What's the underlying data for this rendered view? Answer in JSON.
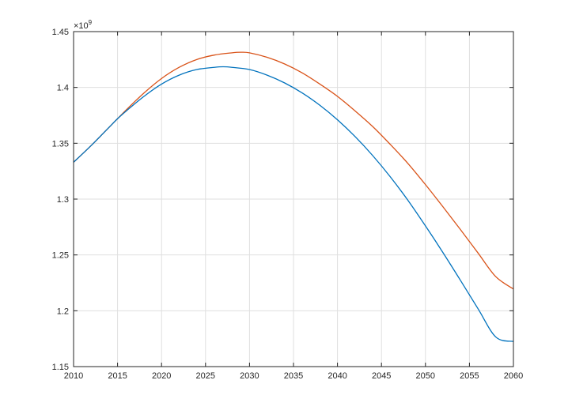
{
  "chart_data": {
    "type": "line",
    "title": "",
    "xlabel": "",
    "ylabel": "",
    "xlim": [
      2010,
      2060
    ],
    "ylim": [
      1.15,
      1.45
    ],
    "y_multiplier_label": "×10",
    "y_multiplier_exponent": "9",
    "grid": true,
    "legend": "none",
    "x_ticks": [
      "2010",
      "2015",
      "2020",
      "2025",
      "2030",
      "2035",
      "2040",
      "2045",
      "2050",
      "2055",
      "2060"
    ],
    "y_ticks": [
      "1.15",
      "1.2",
      "1.25",
      "1.3",
      "1.35",
      "1.4",
      "1.45"
    ],
    "series": [
      {
        "color": "#D95319",
        "x": [
          2010,
          2012,
          2014,
          2015,
          2016,
          2018,
          2020,
          2022,
          2024,
          2026,
          2028,
          2029,
          2030,
          2032,
          2034,
          2036,
          2038,
          2040,
          2042,
          2044,
          2046,
          2048,
          2050,
          2052,
          2054,
          2056,
          2058,
          2060
        ],
        "values": [
          1.333,
          1.348,
          1.364,
          1.372,
          1.38,
          1.395,
          1.408,
          1.418,
          1.425,
          1.429,
          1.431,
          1.4315,
          1.431,
          1.427,
          1.421,
          1.413,
          1.403,
          1.392,
          1.379,
          1.365,
          1.349,
          1.332,
          1.313,
          1.293,
          1.2725,
          1.2515,
          1.2305,
          1.2195
        ]
      },
      {
        "color": "#0072BD",
        "x": [
          2010,
          2012,
          2014,
          2015,
          2016,
          2018,
          2020,
          2022,
          2024,
          2026,
          2027,
          2028,
          2030,
          2032,
          2034,
          2036,
          2038,
          2040,
          2042,
          2044,
          2046,
          2048,
          2050,
          2052,
          2054,
          2056,
          2058,
          2060
        ],
        "values": [
          1.333,
          1.348,
          1.364,
          1.372,
          1.379,
          1.392,
          1.403,
          1.411,
          1.416,
          1.418,
          1.4185,
          1.418,
          1.416,
          1.411,
          1.404,
          1.395,
          1.384,
          1.371,
          1.356,
          1.339,
          1.32,
          1.299,
          1.276,
          1.252,
          1.227,
          1.2015,
          1.1765,
          1.1725
        ]
      }
    ]
  }
}
